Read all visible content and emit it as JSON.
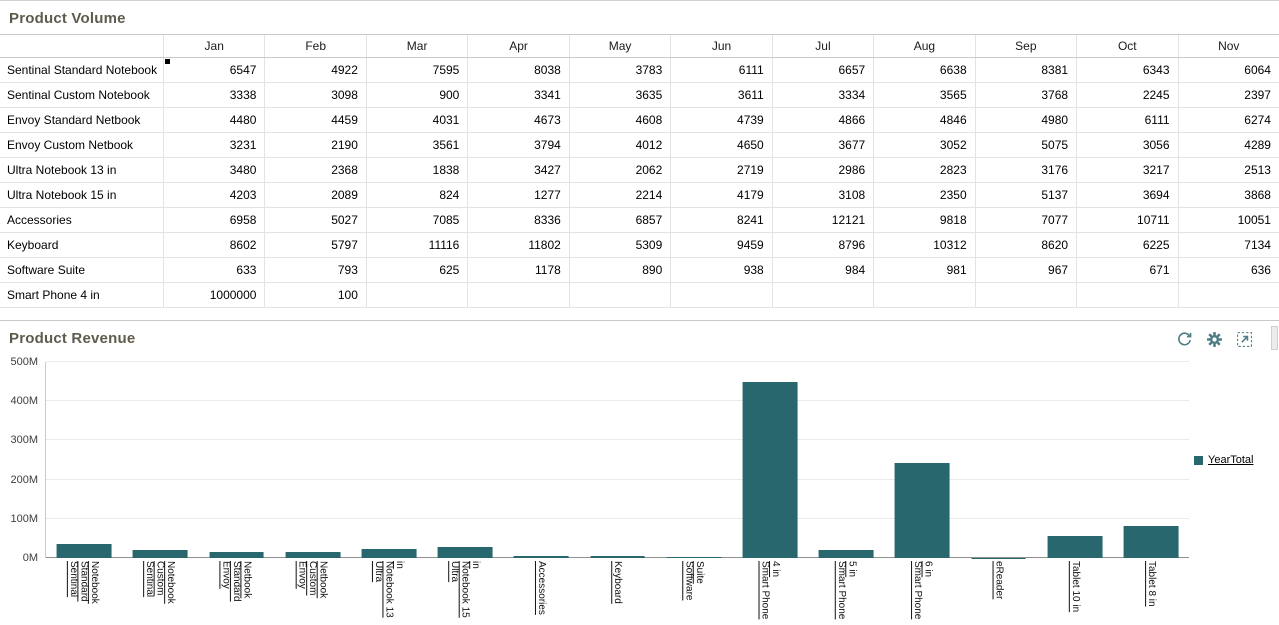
{
  "colors": {
    "title": "#5f5b4c",
    "bar": "#27676d",
    "icon": "#4f7d85",
    "grid": "#eaeaea"
  },
  "volume_panel": {
    "title": "Product Volume",
    "table": {
      "columns": [
        "Jan",
        "Feb",
        "Mar",
        "Apr",
        "May",
        "Jun",
        "Jul",
        "Aug",
        "Sep",
        "Oct",
        "Nov"
      ],
      "rows": [
        {
          "name": "Sentinal Standard Notebook",
          "values": [
            6547,
            4922,
            7595,
            8038,
            3783,
            6111,
            6657,
            6638,
            8381,
            6343,
            6064
          ]
        },
        {
          "name": "Sentinal Custom Notebook",
          "values": [
            3338,
            3098,
            900,
            3341,
            3635,
            3611,
            3334,
            3565,
            3768,
            2245,
            2397
          ]
        },
        {
          "name": "Envoy Standard Netbook",
          "values": [
            4480,
            4459,
            4031,
            4673,
            4608,
            4739,
            4866,
            4846,
            4980,
            6111,
            6274
          ]
        },
        {
          "name": "Envoy Custom Netbook",
          "values": [
            3231,
            2190,
            3561,
            3794,
            4012,
            4650,
            3677,
            3052,
            5075,
            3056,
            4289
          ]
        },
        {
          "name": "Ultra Notebook 13 in",
          "values": [
            3480,
            2368,
            1838,
            3427,
            2062,
            2719,
            2986,
            2823,
            3176,
            3217,
            2513
          ]
        },
        {
          "name": "Ultra Notebook 15 in",
          "values": [
            4203,
            2089,
            824,
            1277,
            2214,
            4179,
            3108,
            2350,
            5137,
            3694,
            3868
          ]
        },
        {
          "name": "Accessories",
          "values": [
            6958,
            5027,
            7085,
            8336,
            6857,
            8241,
            12121,
            9818,
            7077,
            10711,
            10051
          ]
        },
        {
          "name": "Keyboard",
          "values": [
            8602,
            5797,
            11116,
            11802,
            5309,
            9459,
            8796,
            10312,
            8620,
            6225,
            7134
          ]
        },
        {
          "name": "Software Suite",
          "values": [
            633,
            793,
            625,
            1178,
            890,
            938,
            984,
            981,
            967,
            671,
            636
          ]
        },
        {
          "name": "Smart Phone 4 in",
          "values": [
            1000000,
            100,
            null,
            null,
            null,
            null,
            null,
            null,
            null,
            null,
            null
          ]
        }
      ]
    }
  },
  "revenue_panel": {
    "title": "Product Revenue",
    "toolbar_icons": [
      "refresh-icon",
      "gear-icon",
      "maximize-icon"
    ]
  },
  "chart_data": {
    "type": "bar",
    "title": "Product Revenue",
    "categories": [
      "Sentinal Standard Notebook",
      "Sentinal Custom Notebook",
      "Envoy Standard Netbook",
      "Envoy Custom Netbook",
      "Ultra Notebook 13 in",
      "Ultra Notebook 15 in",
      "Accessories",
      "Keyboard",
      "Software Suite",
      "Smart Phone 4 in",
      "Smart Phone 5 in",
      "Smart Phone 6 in",
      "eReader",
      "Tablet 10 in",
      "Tablet 8 in"
    ],
    "series": [
      {
        "name": "YearTotal",
        "values": [
          36,
          20,
          15,
          15,
          23,
          28,
          6,
          4,
          2,
          450,
          20,
          243,
          1,
          56,
          82
        ]
      }
    ],
    "value_unit": "M",
    "ylim": [
      0,
      500
    ],
    "yticks": [
      "0M",
      "100M",
      "200M",
      "300M",
      "400M",
      "500M"
    ],
    "grid": true,
    "legend_position": "right",
    "bar_color": "#27676d"
  }
}
